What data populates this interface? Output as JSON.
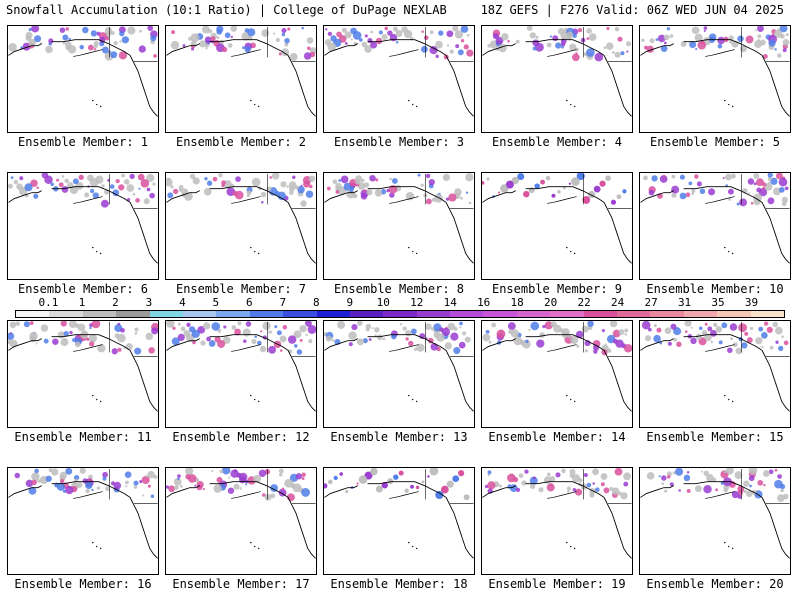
{
  "header": {
    "left": "Snowfall Accumulation (10:1 Ratio) | College of DuPage NEXLAB",
    "right": "18Z GEFS | F276 Valid: 06Z WED JUN 04 2025"
  },
  "members": [
    {
      "label": "Ensemble Member: 1"
    },
    {
      "label": "Ensemble Member: 2"
    },
    {
      "label": "Ensemble Member: 3"
    },
    {
      "label": "Ensemble Member: 4"
    },
    {
      "label": "Ensemble Member: 5"
    },
    {
      "label": "Ensemble Member: 6"
    },
    {
      "label": "Ensemble Member: 7"
    },
    {
      "label": "Ensemble Member: 8"
    },
    {
      "label": "Ensemble Member: 9"
    },
    {
      "label": "Ensemble Member: 10"
    },
    {
      "label": "Ensemble Member: 11"
    },
    {
      "label": "Ensemble Member: 12"
    },
    {
      "label": "Ensemble Member: 13"
    },
    {
      "label": "Ensemble Member: 14"
    },
    {
      "label": "Ensemble Member: 15"
    },
    {
      "label": "Ensemble Member: 16"
    },
    {
      "label": "Ensemble Member: 17"
    },
    {
      "label": "Ensemble Member: 18"
    },
    {
      "label": "Ensemble Member: 19"
    },
    {
      "label": "Ensemble Member: 20"
    }
  ],
  "colorbar": {
    "labels": [
      "0.1",
      "1",
      "2",
      "3",
      "4",
      "5",
      "6",
      "7",
      "8",
      "9",
      "10",
      "12",
      "14",
      "16",
      "18",
      "20",
      "22",
      "24",
      "27",
      "31",
      "35",
      "39"
    ],
    "colors": [
      "#f4f4f4",
      "#d9d9d9",
      "#bdbdbd",
      "#9a9a9a",
      "#7fd7e6",
      "#a8c8f0",
      "#7aa8ee",
      "#4f7ce8",
      "#3a4fe0",
      "#2020d8",
      "#5a1fc0",
      "#7a28c8",
      "#9a3cd0",
      "#b44cd8",
      "#c855d8",
      "#d665d0",
      "#e070c8",
      "#d8509c",
      "#e06a9a",
      "#e8889e",
      "#f0a8ae",
      "#f6c8b8",
      "#fbe2cc"
    ]
  },
  "colors": {
    "land_outline": "#000000",
    "snow_gray": "#bdbdbd",
    "snow_blue": "#4f7ce8",
    "snow_purple": "#9a3cd0",
    "snow_magenta": "#d8509c"
  }
}
